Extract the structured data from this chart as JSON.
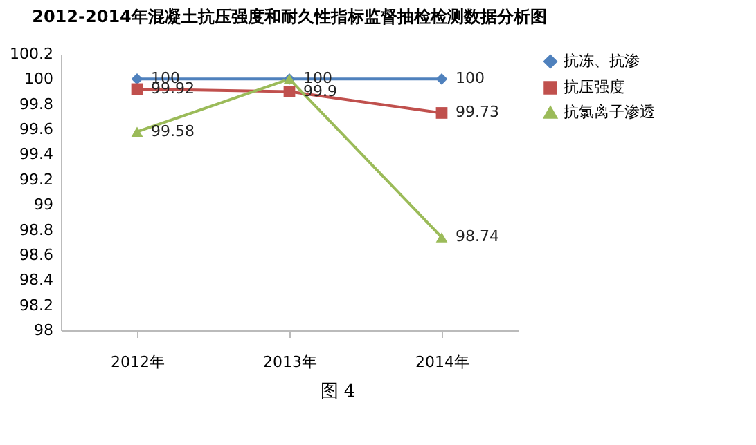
{
  "chart_data": {
    "type": "line",
    "title": "2012-2014年混凝土抗压强度和耐久性指标监督抽检检测数据分析图",
    "categories": [
      "2012年",
      "2013年",
      "2014年"
    ],
    "series": [
      {
        "name": "抗冻、抗渗",
        "color": "#4f81bd",
        "marker": "diamond",
        "values": [
          100,
          100,
          100
        ],
        "value_labels": [
          "100",
          "100",
          "100"
        ]
      },
      {
        "name": "抗压强度",
        "color": "#c0504d",
        "marker": "square",
        "values": [
          99.92,
          99.9,
          99.73
        ],
        "value_labels": [
          "99.92",
          "99.9",
          "99.73"
        ]
      },
      {
        "name": "抗氯离子渗透",
        "color": "#9bbb59",
        "marker": "triangle",
        "values": [
          99.58,
          100,
          98.74
        ],
        "value_labels": [
          "99.58",
          null,
          "98.74"
        ]
      }
    ],
    "ylim": [
      98,
      100.2
    ],
    "yticks": [
      98,
      98.2,
      98.4,
      98.6,
      98.8,
      99,
      99.2,
      99.4,
      99.6,
      99.8,
      100,
      100.2
    ],
    "grid": false,
    "legend": "right",
    "line_style": "solid",
    "annotations": [
      "图 4"
    ]
  }
}
